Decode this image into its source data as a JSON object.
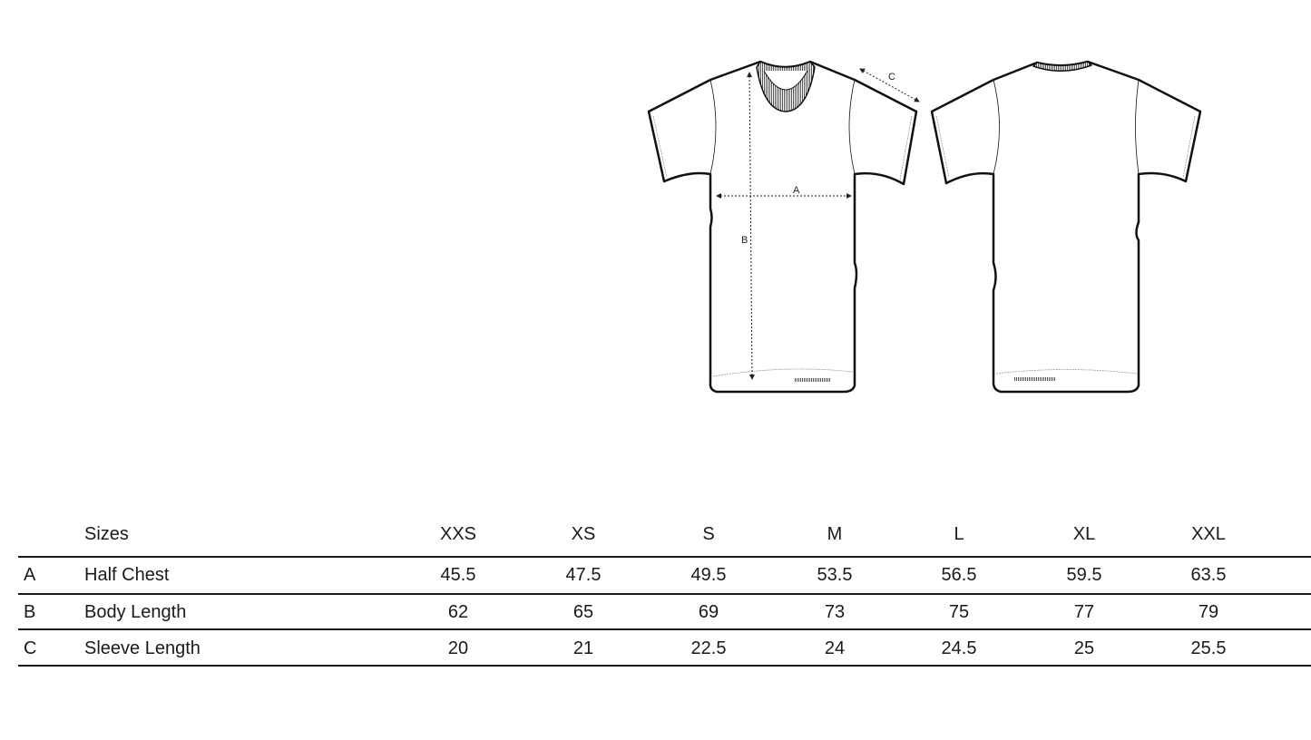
{
  "diagram": {
    "views": [
      "front",
      "back"
    ],
    "labels": {
      "chest": "A",
      "body": "B",
      "sleeve": "C"
    }
  },
  "table": {
    "header": {
      "label": "Sizes",
      "sizes": [
        "XXS",
        "XS",
        "S",
        "M",
        "L",
        "XL",
        "XXL"
      ]
    },
    "rows": [
      {
        "letter": "A",
        "name": "Half Chest",
        "values": [
          "45.5",
          "47.5",
          "49.5",
          "53.5",
          "56.5",
          "59.5",
          "63.5"
        ]
      },
      {
        "letter": "B",
        "name": "Body Length",
        "values": [
          "62",
          "65",
          "69",
          "73",
          "75",
          "77",
          "79"
        ]
      },
      {
        "letter": "C",
        "name": "Sleeve Length",
        "values": [
          "20",
          "21",
          "22.5",
          "24",
          "24.5",
          "25",
          "25.5"
        ]
      }
    ]
  }
}
